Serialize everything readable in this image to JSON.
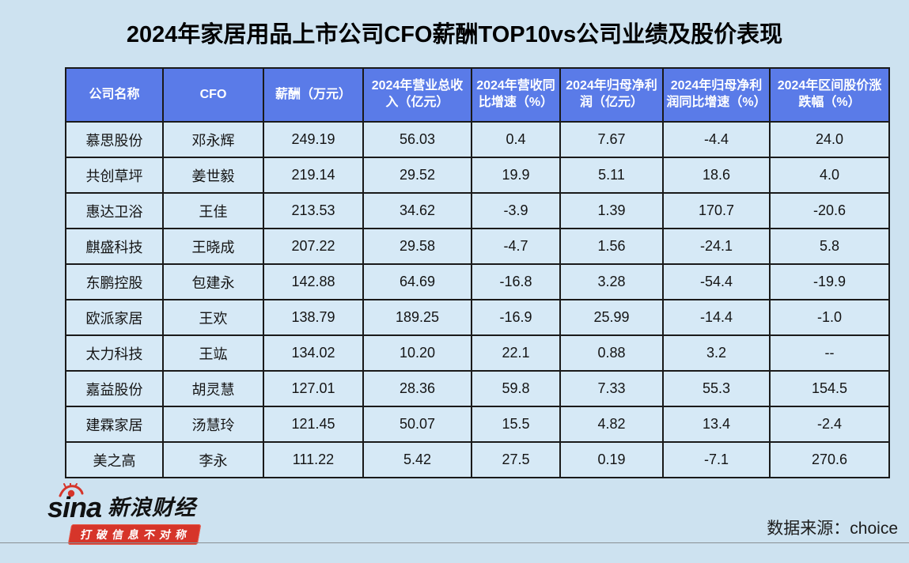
{
  "title": "2024年家居用品上市公司CFO薪酬TOP10vs公司业绩及股价表现",
  "chart_data": {
    "type": "table",
    "title": "2024年家居用品上市公司CFO薪酬TOP10vs公司业绩及股价表现",
    "columns": [
      "公司名称",
      "CFO",
      "薪酬（万元）",
      "2024年营业总收入（亿元）",
      "2024年营收同比增速（%）",
      "2024年归母净利润（亿元）",
      "2024年归母净利润同比增速（%）",
      "2024年区间股价涨跌幅（%）"
    ],
    "rows": [
      [
        "慕思股份",
        "邓永辉",
        "249.19",
        "56.03",
        "0.4",
        "7.67",
        "-4.4",
        "24.0"
      ],
      [
        "共创草坪",
        "姜世毅",
        "219.14",
        "29.52",
        "19.9",
        "5.11",
        "18.6",
        "4.0"
      ],
      [
        "惠达卫浴",
        "王佳",
        "213.53",
        "34.62",
        "-3.9",
        "1.39",
        "170.7",
        "-20.6"
      ],
      [
        "麒盛科技",
        "王晓成",
        "207.22",
        "29.58",
        "-4.7",
        "1.56",
        "-24.1",
        "5.8"
      ],
      [
        "东鹏控股",
        "包建永",
        "142.88",
        "64.69",
        "-16.8",
        "3.28",
        "-54.4",
        "-19.9"
      ],
      [
        "欧派家居",
        "王欢",
        "138.79",
        "189.25",
        "-16.9",
        "25.99",
        "-14.4",
        "-1.0"
      ],
      [
        "太力科技",
        "王竑",
        "134.02",
        "10.20",
        "22.1",
        "0.88",
        "3.2",
        "--"
      ],
      [
        "嘉益股份",
        "胡灵慧",
        "127.01",
        "28.36",
        "59.8",
        "7.33",
        "55.3",
        "154.5"
      ],
      [
        "建霖家居",
        "汤慧玲",
        "121.45",
        "50.07",
        "15.5",
        "4.82",
        "13.4",
        "-2.4"
      ],
      [
        "美之高",
        "李永",
        "111.22",
        "5.42",
        "27.5",
        "0.19",
        "-7.1",
        "270.6"
      ]
    ]
  },
  "footer": {
    "logo_wordmark": "sina",
    "logo_brand": "新浪财经",
    "logo_tagline": "打破信息不对称",
    "source": "数据来源：choice"
  },
  "colors": {
    "page_bg": "#cde2f0",
    "header_bg": "#5a7be8",
    "cell_bg": "#d6e9f6",
    "border": "#1a1a1a",
    "brand_red": "#d6352a"
  }
}
